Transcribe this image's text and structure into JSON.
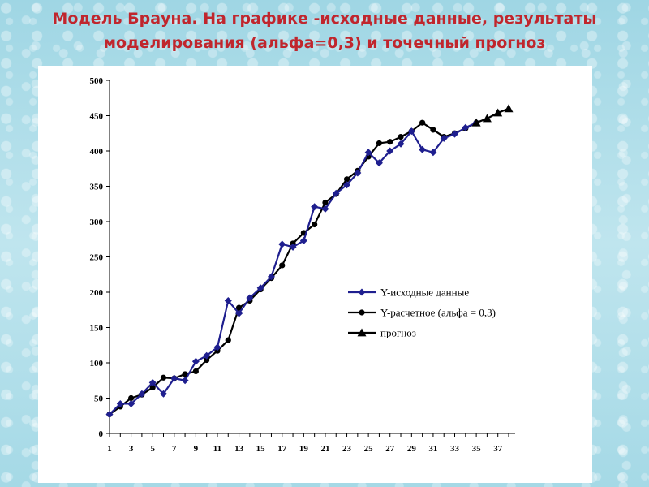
{
  "title_line1": "Модель Брауна. На графике -исходные данные, результаты",
  "title_line2": "моделирования (альфа=0,3) и точечный прогноз",
  "chart_data": {
    "type": "line",
    "ylim": [
      0,
      500
    ],
    "yticks": [
      0,
      50,
      100,
      150,
      200,
      250,
      300,
      350,
      400,
      450,
      500
    ],
    "xticks": [
      1,
      3,
      5,
      7,
      9,
      11,
      13,
      15,
      17,
      19,
      21,
      23,
      25,
      27,
      29,
      31,
      33,
      35,
      37
    ],
    "xlim": [
      1,
      38
    ],
    "grid": false,
    "legend_position": "right-middle",
    "series": [
      {
        "name": "Y-исходные данные",
        "color": "#1f1f8f",
        "marker": "diamond",
        "x": [
          1,
          2,
          3,
          4,
          5,
          6,
          7,
          8,
          9,
          10,
          11,
          12,
          13,
          14,
          15,
          16,
          17,
          18,
          19,
          20,
          21,
          22,
          23,
          24,
          25,
          26,
          27,
          28,
          29,
          30,
          31,
          32,
          33,
          34,
          35
        ],
        "values": [
          27,
          42,
          42,
          56,
          72,
          56,
          78,
          75,
          102,
          110,
          122,
          188,
          170,
          192,
          206,
          222,
          268,
          264,
          273,
          321,
          318,
          340,
          352,
          369,
          398,
          383,
          400,
          410,
          428,
          402,
          398,
          418,
          424,
          433,
          440
        ]
      },
      {
        "name": "Y-расчетное (альфа = 0,3)",
        "color": "#000000",
        "marker": "circle",
        "x": [
          1,
          2,
          3,
          4,
          5,
          6,
          7,
          8,
          9,
          10,
          11,
          12,
          13,
          14,
          15,
          16,
          17,
          18,
          19,
          20,
          21,
          22,
          23,
          24,
          25,
          26,
          27,
          28,
          29,
          30,
          31,
          32,
          33,
          34,
          35
        ],
        "values": [
          27,
          38,
          50,
          55,
          65,
          79,
          78,
          84,
          88,
          104,
          117,
          132,
          178,
          188,
          204,
          220,
          238,
          269,
          284,
          296,
          327,
          339,
          360,
          372,
          392,
          411,
          413,
          420,
          428,
          440,
          430,
          420,
          425,
          432,
          440
        ]
      },
      {
        "name": "прогноз",
        "color": "#000000",
        "marker": "triangle",
        "x": [
          35,
          36,
          37,
          38
        ],
        "values": [
          440,
          446,
          454,
          460
        ]
      }
    ]
  }
}
